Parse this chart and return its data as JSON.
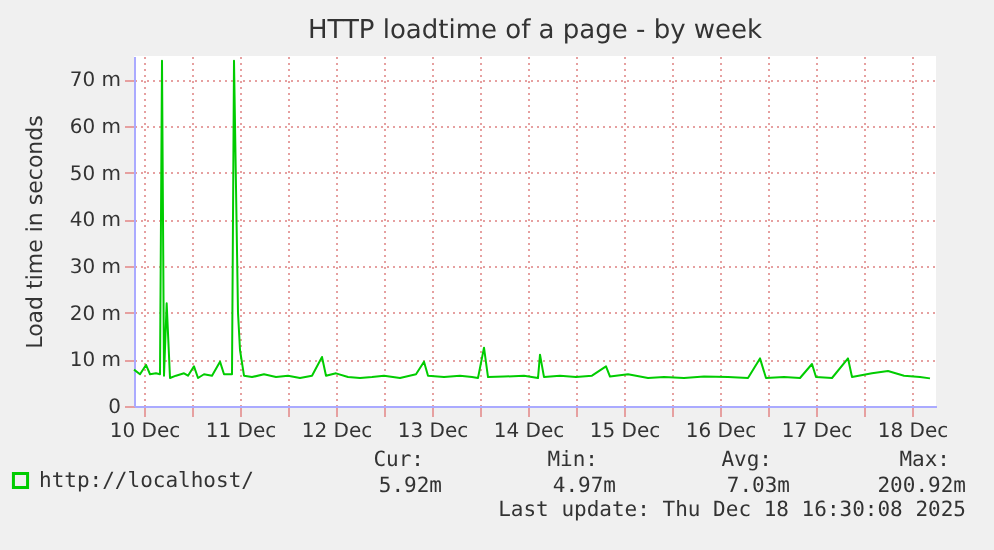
{
  "chart_data": {
    "type": "line",
    "title": "HTTP loadtime of a page - by week",
    "ylabel": "Load time in seconds",
    "xlim": [
      "2025-12-10T09:30",
      "2025-12-18T18:00"
    ],
    "xticks": [
      {
        "value": "2025-12-10T12:00",
        "label": "10 Dec"
      },
      {
        "value": "2025-12-11T00:00",
        "label": null
      },
      {
        "value": "2025-12-11T12:00",
        "label": "11 Dec"
      },
      {
        "value": "2025-12-12T00:00",
        "label": null
      },
      {
        "value": "2025-12-12T12:00",
        "label": "12 Dec"
      },
      {
        "value": "2025-12-13T00:00",
        "label": null
      },
      {
        "value": "2025-12-13T12:00",
        "label": "13 Dec"
      },
      {
        "value": "2025-12-14T00:00",
        "label": null
      },
      {
        "value": "2025-12-14T12:00",
        "label": "14 Dec"
      },
      {
        "value": "2025-12-15T00:00",
        "label": null
      },
      {
        "value": "2025-12-15T12:00",
        "label": "15 Dec"
      },
      {
        "value": "2025-12-16T00:00",
        "label": null
      },
      {
        "value": "2025-12-16T12:00",
        "label": "16 Dec"
      },
      {
        "value": "2025-12-17T00:00",
        "label": null
      },
      {
        "value": "2025-12-17T12:00",
        "label": "17 Dec"
      },
      {
        "value": "2025-12-18T00:00",
        "label": null
      },
      {
        "value": "2025-12-18T12:00",
        "label": "18 Dec"
      }
    ],
    "ylim": [
      0,
      75
    ],
    "yticks": [
      0,
      {
        "value": 10,
        "label": "10 m"
      },
      {
        "value": 20,
        "label": "20 m"
      },
      {
        "value": 30,
        "label": "30 m"
      },
      {
        "value": 40,
        "label": "40 m"
      },
      {
        "value": 50,
        "label": "50 m"
      },
      {
        "value": 60,
        "label": "60 m"
      },
      {
        "value": 70,
        "label": "70 m"
      }
    ],
    "grid": true,
    "legend": "bottom left",
    "marker": "none",
    "line_style": "solid",
    "x": [
      "2025-12-10T09:30",
      "2025-12-10T11:00",
      "2025-12-10T12:30",
      "2025-12-10T13:30",
      "2025-12-10T15:00",
      "2025-12-10T16:00",
      "2025-12-10T16:30",
      "2025-12-10T17:00",
      "2025-12-10T17:40",
      "2025-12-10T18:30",
      "2025-12-10T20:00",
      "2025-12-10T22:00",
      "2025-12-10T23:00",
      "2025-12-11T00:30",
      "2025-12-11T01:30",
      "2025-12-11T03:00",
      "2025-12-11T05:00",
      "2025-12-11T07:00",
      "2025-12-11T08:00",
      "2025-12-11T10:00",
      "2025-12-11T10:30",
      "2025-12-11T11:30",
      "2025-12-11T12:00",
      "2025-12-11T13:00",
      "2025-12-11T15:00",
      "2025-12-11T18:00",
      "2025-12-11T21:00",
      "2025-12-12T00:00",
      "2025-12-12T03:00",
      "2025-12-12T06:00",
      "2025-12-12T08:30",
      "2025-12-12T09:30",
      "2025-12-12T12:00",
      "2025-12-12T15:00",
      "2025-12-12T18:00",
      "2025-12-12T21:00",
      "2025-12-13T00:00",
      "2025-12-13T04:00",
      "2025-12-13T08:00",
      "2025-12-13T10:00",
      "2025-12-13T11:00",
      "2025-12-13T15:00",
      "2025-12-13T19:00",
      "2025-12-13T22:00",
      "2025-12-13T23:30",
      "2025-12-14T01:00",
      "2025-12-14T02:00",
      "2025-12-14T06:00",
      "2025-12-14T11:00",
      "2025-12-14T14:30",
      "2025-12-14T15:00",
      "2025-12-14T16:00",
      "2025-12-14T20:00",
      "2025-12-15T00:00",
      "2025-12-15T04:00",
      "2025-12-15T07:30",
      "2025-12-15T08:30",
      "2025-12-15T13:00",
      "2025-12-15T18:00",
      "2025-12-15T22:00",
      "2025-12-16T03:00",
      "2025-12-16T08:00",
      "2025-12-16T14:00",
      "2025-12-16T19:00",
      "2025-12-16T22:00",
      "2025-12-16T23:30",
      "2025-12-17T04:00",
      "2025-12-17T08:00",
      "2025-12-17T11:00",
      "2025-12-17T12:00",
      "2025-12-17T16:00",
      "2025-12-17T20:00",
      "2025-12-17T21:00",
      "2025-12-18T02:00",
      "2025-12-18T06:00",
      "2025-12-18T10:00",
      "2025-12-18T14:00",
      "2025-12-18T16:30"
    ],
    "series": [
      {
        "name": "http://localhost/",
        "color": "#00cc00",
        "values": [
          7.8,
          6.8,
          8.8,
          6.8,
          7,
          6.8,
          74,
          6.5,
          22,
          6,
          6.5,
          7,
          6.5,
          8.5,
          6,
          6.8,
          6.5,
          9.5,
          6.8,
          6.8,
          74,
          20,
          12,
          6.5,
          6.2,
          6.8,
          6.2,
          6.5,
          6,
          6.5,
          10.5,
          6.5,
          7,
          6.2,
          6,
          6.2,
          6.5,
          6,
          6.8,
          9.5,
          6.5,
          6.2,
          6.5,
          6.2,
          6,
          12.5,
          6.2,
          6.3,
          6.5,
          6,
          11,
          6.2,
          6.5,
          6.2,
          6.5,
          8.5,
          6.3,
          6.8,
          6,
          6.2,
          6,
          6.3,
          6.2,
          6,
          10.2,
          6,
          6.2,
          6,
          9,
          6.2,
          6,
          10.2,
          6.2,
          7,
          7.5,
          6.5,
          6.2,
          5.92
        ]
      }
    ],
    "annotations": [
      "Cur:",
      "Min:",
      "Avg:",
      "Max:",
      "5.92m",
      "4.97m",
      "7.03m",
      "200.92m",
      "Last update: Thu Dec 18 16:30:08 2025"
    ]
  }
}
